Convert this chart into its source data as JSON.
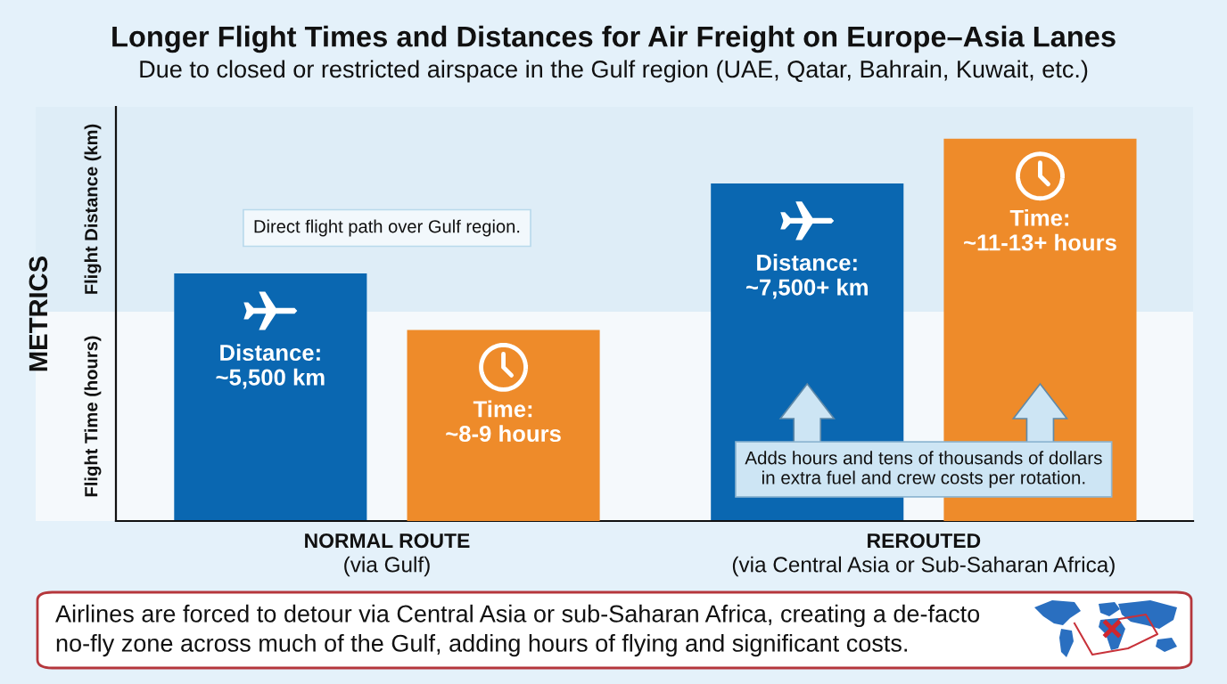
{
  "chart_data": {
    "type": "bar",
    "title": "Longer Flight Times and Distances for Air Freight on Europe–Asia Lanes",
    "subtitle": "Due to closed or restricted airspace in the Gulf region (UAE, Qatar, Bahrain, Kuwait, etc.)",
    "ylabel": "METRICS",
    "ylim": [
      0,
      9200
    ],
    "y2lim": [
      5,
      11.5
    ],
    "tick_labels": "x",
    "categories": [
      "NORMAL ROUTE\n(via Gulf)",
      "REROUTED\n(via Central Asia or Sub-Saharan Africa)"
    ],
    "series": [
      {
        "color": "#0a67b1",
        "values": [
          5500,
          7500
        ],
        "value_labels": [
          "Distance:\n~5,500 km",
          "Distance:\n~7,500+ km"
        ]
      },
      {
        "color": "#ee8b2a",
        "axis": "y2",
        "values": [
          8,
          11
        ],
        "value_labels": [
          "Time:\n~8-9 hours",
          "Time:\n~11-13+ hours"
        ]
      }
    ],
    "bands": [
      {
        "axis": "y",
        "from": 4650,
        "to": 9200,
        "label": "Flight Distance (km)",
        "color": "#deedf7"
      },
      {
        "axis": "y",
        "from": 0,
        "to": 4650,
        "label": "Flight Time (hours)",
        "color": "#f5f9fc"
      }
    ],
    "annotations": [
      "Direct flight path over Gulf region.",
      "Adds hours and tens of thousands of dollars\nin extra fuel and crew costs per rotation.",
      "Airlines are forced to detour via Central Asia or sub-Saharan Africa, creating a de-facto\nno-fly zone across much of the Gulf, adding hours of flying and significant costs."
    ]
  }
}
